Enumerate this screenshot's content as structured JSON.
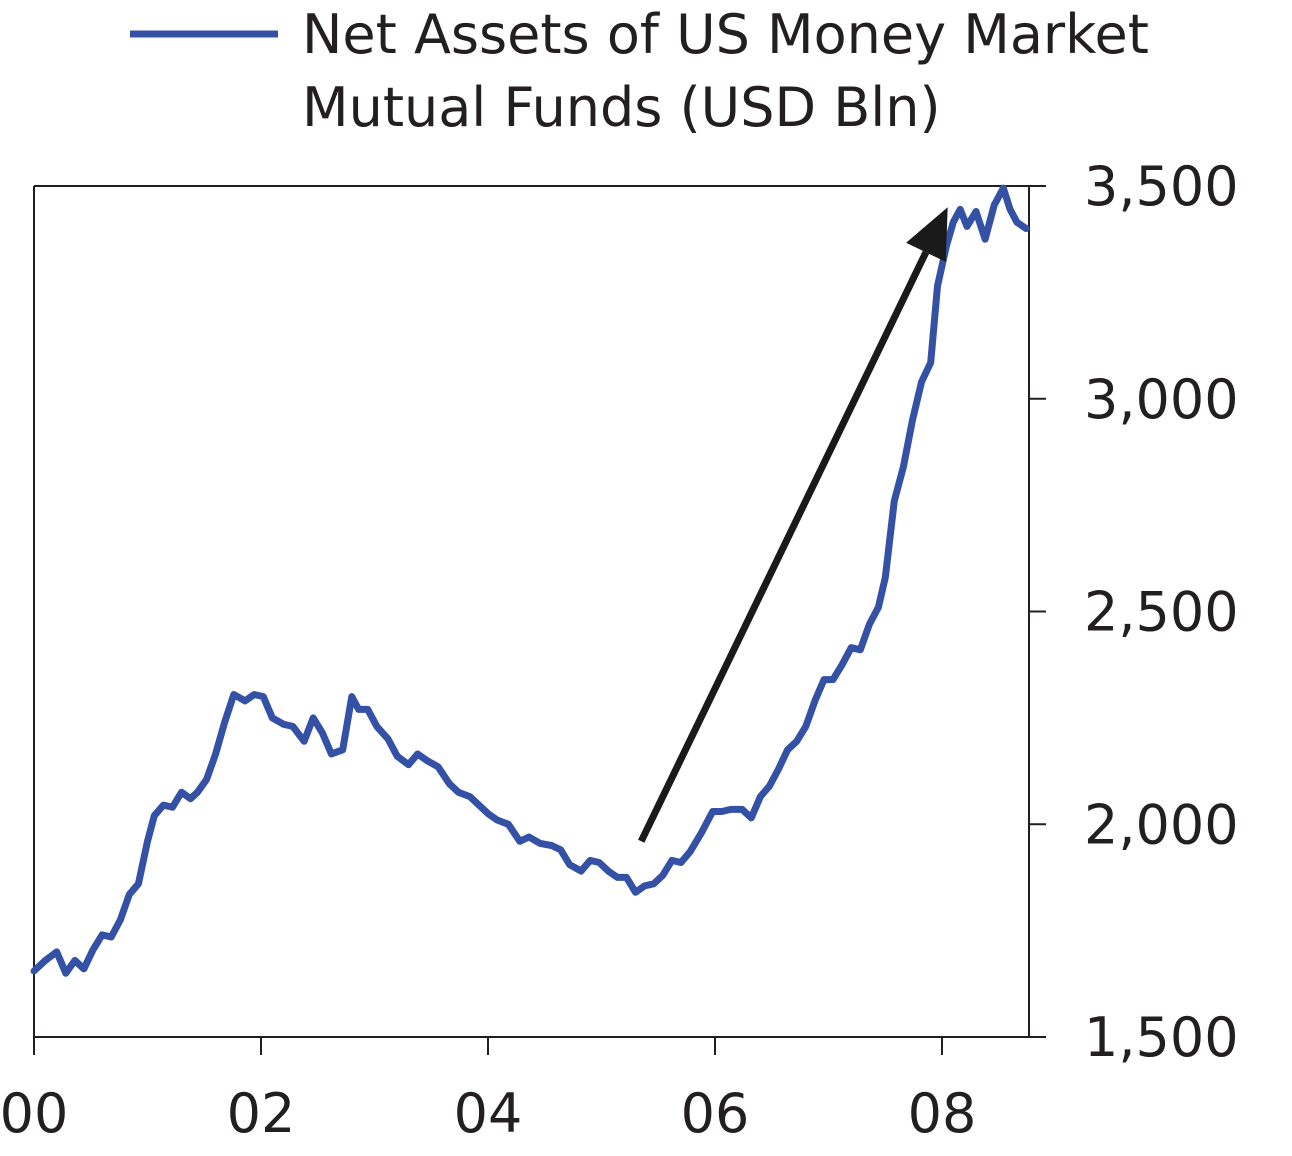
{
  "chart_data": {
    "type": "line",
    "title": "",
    "xlabel": "",
    "ylabel": "",
    "legend": {
      "placement": "top",
      "entries": [
        {
          "line1": "Net Assets of US Money Market",
          "line2": "Mutual Funds (USD Bln)"
        }
      ]
    },
    "xlim": [
      2000,
      2008.75
    ],
    "ylim": [
      1500,
      3500
    ],
    "x_ticks": [
      2000,
      2002,
      2004,
      2006,
      2008
    ],
    "x_tick_labels": [
      "00",
      "02",
      "04",
      "06",
      "08"
    ],
    "y_ticks": [
      1500,
      2000,
      2500,
      3000,
      3500
    ],
    "y_tick_labels": [
      "1,500",
      "2,000",
      "2,500",
      "3,000",
      "3,500"
    ],
    "y_axis_position": "right",
    "grid": false,
    "colors": {
      "series": "#3451a6",
      "arrow": "#1a1a1a",
      "axis": "#231f20"
    },
    "annotations": [
      {
        "type": "arrow",
        "from": [
          2005.35,
          1960
        ],
        "to": [
          2008.05,
          3450
        ]
      }
    ],
    "series": [
      {
        "name": "Net Assets of US Money Market Mutual Funds (USD Bln)",
        "x": [
          2000.0,
          2000.1,
          2000.2,
          2000.28,
          2000.36,
          2000.44,
          2000.52,
          2000.6,
          2000.68,
          2000.76,
          2000.84,
          2000.92,
          2001.0,
          2001.06,
          2001.14,
          2001.22,
          2001.3,
          2001.38,
          2001.44,
          2001.52,
          2001.6,
          2001.68,
          2001.76,
          2001.86,
          2001.94,
          2002.02,
          2002.1,
          2002.2,
          2002.28,
          2002.38,
          2002.46,
          2002.54,
          2002.62,
          2002.72,
          2002.8,
          2002.86,
          2002.94,
          2003.02,
          2003.12,
          2003.2,
          2003.3,
          2003.38,
          2003.46,
          2003.56,
          2003.66,
          2003.74,
          2003.84,
          2003.92,
          2004.0,
          2004.08,
          2004.18,
          2004.28,
          2004.36,
          2004.46,
          2004.56,
          2004.64,
          2004.72,
          2004.82,
          2004.9,
          2004.98,
          2005.06,
          2005.14,
          2005.22,
          2005.3,
          2005.38,
          2005.46,
          2005.54,
          2005.62,
          2005.7,
          2005.78,
          2005.88,
          2005.98,
          2006.06,
          2006.14,
          2006.24,
          2006.32,
          2006.4,
          2006.48,
          2006.56,
          2006.64,
          2006.72,
          2006.8,
          2006.88,
          2006.96,
          2007.04,
          2007.12,
          2007.2,
          2007.28,
          2007.36,
          2007.44,
          2007.5,
          2007.58,
          2007.66,
          2007.74,
          2007.82,
          2007.9,
          2007.96,
          2008.04,
          2008.1,
          2008.16,
          2008.22,
          2008.3,
          2008.38,
          2008.46,
          2008.54,
          2008.6,
          2008.66,
          2008.74
        ],
        "values": [
          1655,
          1680,
          1700,
          1650,
          1680,
          1660,
          1705,
          1740,
          1735,
          1775,
          1835,
          1860,
          1960,
          2020,
          2045,
          2040,
          2075,
          2060,
          2075,
          2105,
          2165,
          2240,
          2305,
          2290,
          2305,
          2300,
          2250,
          2235,
          2230,
          2195,
          2250,
          2215,
          2165,
          2175,
          2300,
          2270,
          2270,
          2230,
          2200,
          2160,
          2140,
          2165,
          2150,
          2135,
          2095,
          2075,
          2065,
          2045,
          2025,
          2010,
          2000,
          1960,
          1970,
          1955,
          1950,
          1940,
          1905,
          1890,
          1915,
          1910,
          1890,
          1875,
          1875,
          1840,
          1855,
          1860,
          1880,
          1915,
          1910,
          1935,
          1980,
          2030,
          2030,
          2035,
          2035,
          2015,
          2065,
          2090,
          2130,
          2175,
          2195,
          2230,
          2290,
          2340,
          2340,
          2375,
          2415,
          2410,
          2470,
          2510,
          2580,
          2760,
          2840,
          2950,
          3040,
          3085,
          3265,
          3360,
          3415,
          3445,
          3405,
          3440,
          3375,
          3455,
          3495,
          3445,
          3415,
          3400
        ]
      }
    ]
  }
}
